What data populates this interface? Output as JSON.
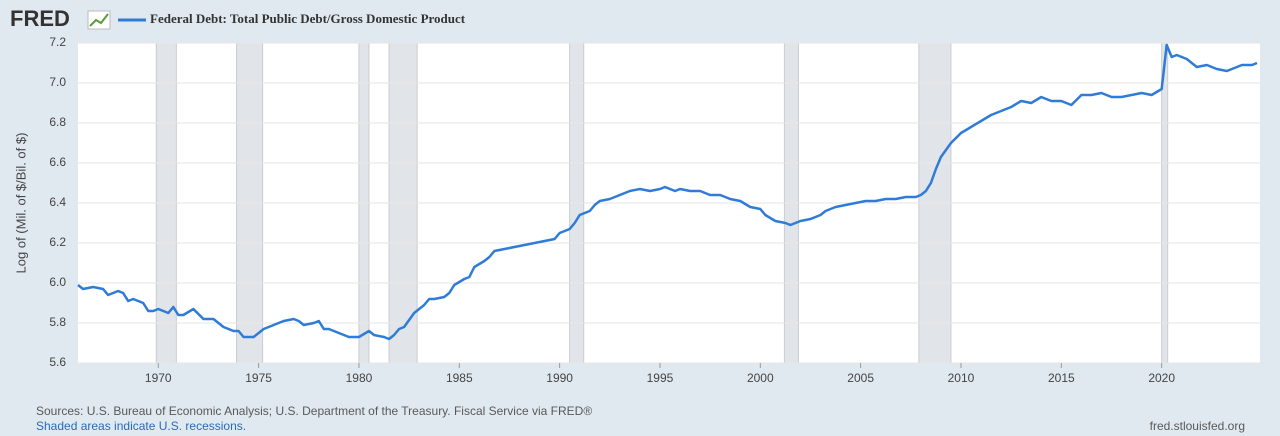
{
  "chart_data": {
    "type": "line",
    "logo": "FRED",
    "y_label": "Log of (Mil. of $/Bil. of $)",
    "source": "Sources: U.S. Bureau of Economic Analysis; U.S. Department of the Treasury. Fiscal Service via FRED®",
    "note": "Shaded areas indicate U.S. recessions.",
    "site": "fred.stlouisfed.org",
    "xlim": [
      1966,
      2024.9
    ],
    "xticks": [
      1970,
      1975,
      1980,
      1985,
      1990,
      1995,
      2000,
      2005,
      2010,
      2015,
      2020
    ],
    "ylim": [
      5.6,
      7.2
    ],
    "yticks": [
      5.6,
      5.8,
      {
        "value": 6,
        "label": "6.0"
      },
      6.2,
      6.4,
      6.6,
      6.8,
      {
        "value": 7,
        "label": "7.0"
      },
      7.2
    ],
    "grid": true,
    "recessions": [
      [
        1969.9,
        1970.9
      ],
      [
        1973.9,
        1975.2
      ],
      [
        1980.0,
        1980.5
      ],
      [
        1981.5,
        1982.9
      ],
      [
        1990.5,
        1991.2
      ],
      [
        2001.2,
        2001.9
      ],
      [
        2007.9,
        2009.5
      ],
      [
        2020.0,
        2020.3
      ]
    ],
    "x": [
      1966.0,
      1966.25,
      1966.75,
      1967.25,
      1967.5,
      1968,
      1968.25,
      1968.5,
      1968.75,
      1969.25,
      1969.5,
      1969.75,
      1970,
      1970.5,
      1970.75,
      1971,
      1971.25,
      1971.75,
      1972.25,
      1972.75,
      1973.25,
      1973.75,
      1974,
      1974.25,
      1974.75,
      1975.25,
      1975.75,
      1976.25,
      1976.75,
      1977,
      1977.25,
      1977.75,
      1978,
      1978.25,
      1978.5,
      1979,
      1979.5,
      1980,
      1980.5,
      1980.75,
      1981.25,
      1981.5,
      1981.75,
      1982,
      1982.25,
      1982.75,
      1983.25,
      1983.5,
      1983.75,
      1984.25,
      1984.5,
      1984.75,
      1985.25,
      1985.5,
      1985.75,
      1986.25,
      1986.5,
      1986.75,
      1987.25,
      1987.75,
      1988.25,
      1988.75,
      1989.25,
      1989.75,
      1990,
      1990.5,
      1990.75,
      1991,
      1991.5,
      1991.75,
      1992,
      1992.5,
      1993,
      1993.5,
      1994,
      1994.5,
      1995,
      1995.25,
      1995.75,
      1996,
      1996.5,
      1997,
      1997.5,
      1998,
      1998.5,
      1999,
      1999.5,
      2000,
      2000.25,
      2000.75,
      2001.25,
      2001.5,
      2002,
      2002.5,
      2003,
      2003.25,
      2003.75,
      2004.25,
      2004.75,
      2005.25,
      2005.75,
      2006.25,
      2006.75,
      2007.25,
      2007.75,
      2008,
      2008.25,
      2008.5,
      2008.75,
      2009,
      2009.5,
      2010,
      2010.5,
      2011,
      2011.5,
      2012,
      2012.5,
      2013,
      2013.5,
      2014,
      2014.5,
      2015,
      2015.5,
      2016,
      2016.5,
      2017,
      2017.5,
      2018,
      2018.5,
      2019,
      2019.5,
      2020,
      2020.25,
      2020.5,
      2020.75,
      2021.25,
      2021.75,
      2022.25,
      2022.75,
      2023.25,
      2023.5,
      2024,
      2024.5,
      2024.75
    ],
    "series": [
      {
        "name": "Federal Debt: Total Public Debt/Gross Domestic Product",
        "color": "#2f7bd8",
        "values": [
          5.99,
          5.97,
          5.98,
          5.97,
          5.94,
          5.96,
          5.95,
          5.91,
          5.92,
          5.9,
          5.86,
          5.86,
          5.87,
          5.85,
          5.88,
          5.84,
          5.84,
          5.87,
          5.82,
          5.82,
          5.78,
          5.76,
          5.76,
          5.73,
          5.73,
          5.77,
          5.79,
          5.81,
          5.82,
          5.81,
          5.79,
          5.8,
          5.81,
          5.77,
          5.77,
          5.75,
          5.73,
          5.73,
          5.76,
          5.74,
          5.73,
          5.72,
          5.74,
          5.77,
          5.78,
          5.85,
          5.89,
          5.92,
          5.92,
          5.93,
          5.95,
          5.99,
          6.02,
          6.03,
          6.08,
          6.11,
          6.13,
          6.16,
          6.17,
          6.18,
          6.19,
          6.2,
          6.21,
          6.22,
          6.25,
          6.27,
          6.3,
          6.34,
          6.36,
          6.39,
          6.41,
          6.42,
          6.44,
          6.46,
          6.47,
          6.46,
          6.47,
          6.48,
          6.46,
          6.47,
          6.46,
          6.46,
          6.44,
          6.44,
          6.42,
          6.41,
          6.38,
          6.37,
          6.34,
          6.31,
          6.3,
          6.29,
          6.31,
          6.32,
          6.34,
          6.36,
          6.38,
          6.39,
          6.4,
          6.41,
          6.41,
          6.42,
          6.42,
          6.43,
          6.43,
          6.44,
          6.46,
          6.5,
          6.57,
          6.63,
          6.7,
          6.75,
          6.78,
          6.81,
          6.84,
          6.86,
          6.88,
          6.91,
          6.9,
          6.93,
          6.91,
          6.91,
          6.89,
          6.94,
          6.94,
          6.95,
          6.93,
          6.93,
          6.94,
          6.95,
          6.94,
          6.97,
          7.19,
          7.13,
          7.14,
          7.12,
          7.08,
          7.09,
          7.07,
          7.06,
          7.07,
          7.09,
          7.09,
          7.1
        ]
      }
    ]
  }
}
